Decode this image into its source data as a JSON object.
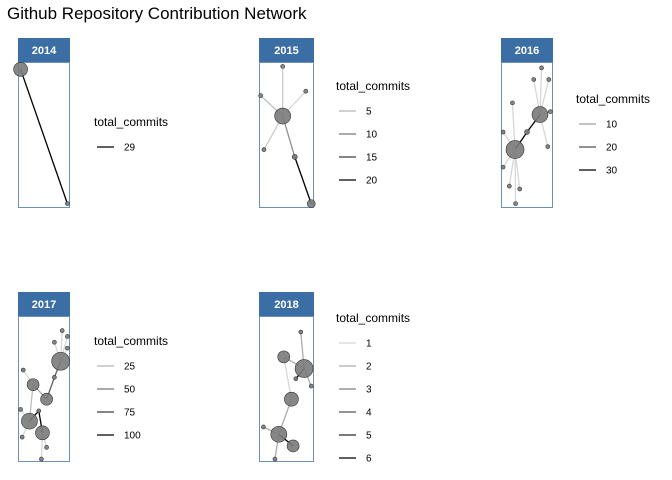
{
  "title": "Github Repository Contribution Network",
  "colors": {
    "strip": "#3a6ea5",
    "node": "#7a7a7a",
    "edge_light": "#d9d9d9",
    "edge_dark": "#000000"
  },
  "chart_data": {
    "type": "network",
    "facet_variable": "year",
    "edge_legend_title": "total_commits",
    "panels": [
      {
        "year": "2014",
        "legend": {
          "title": "total_commits",
          "values": [
            29
          ],
          "labels": [
            "29"
          ]
        },
        "nodes": [
          {
            "id": "a",
            "x": 0.05,
            "y": 0.05,
            "size": 7
          },
          {
            "id": "b",
            "x": 0.95,
            "y": 0.97,
            "size": 2
          }
        ],
        "edges": [
          {
            "from": "a",
            "to": "b",
            "commits": 29
          }
        ]
      },
      {
        "year": "2015",
        "legend": {
          "title": "total_commits",
          "values": [
            5,
            10,
            15,
            20
          ],
          "labels": [
            "5",
            "10",
            "15",
            "20"
          ]
        },
        "nodes": [
          {
            "id": "c",
            "x": 0.43,
            "y": 0.37,
            "size": 8
          },
          {
            "id": "t",
            "x": 0.43,
            "y": 0.03,
            "size": 2
          },
          {
            "id": "l",
            "x": 0.03,
            "y": 0.23,
            "size": 2
          },
          {
            "id": "r",
            "x": 0.85,
            "y": 0.2,
            "size": 2
          },
          {
            "id": "bl",
            "x": 0.09,
            "y": 0.6,
            "size": 2
          },
          {
            "id": "m",
            "x": 0.65,
            "y": 0.65,
            "size": 2.5
          },
          {
            "id": "e",
            "x": 0.95,
            "y": 0.97,
            "size": 4
          }
        ],
        "edges": [
          {
            "from": "c",
            "to": "t",
            "commits": 3
          },
          {
            "from": "c",
            "to": "l",
            "commits": 4
          },
          {
            "from": "c",
            "to": "r",
            "commits": 2
          },
          {
            "from": "c",
            "to": "bl",
            "commits": 3
          },
          {
            "from": "c",
            "to": "m",
            "commits": 8
          },
          {
            "from": "m",
            "to": "e",
            "commits": 20
          }
        ]
      },
      {
        "year": "2016",
        "legend": {
          "title": "total_commits",
          "values": [
            10,
            20,
            30
          ],
          "labels": [
            "10",
            "20",
            "30"
          ]
        },
        "nodes": [
          {
            "id": "h1",
            "x": 0.75,
            "y": 0.36,
            "size": 8
          },
          {
            "id": "h2",
            "x": 0.27,
            "y": 0.6,
            "size": 9
          },
          {
            "id": "j",
            "x": 0.5,
            "y": 0.48,
            "size": 2.5
          },
          {
            "id": "a1",
            "x": 0.78,
            "y": 0.04,
            "size": 2
          },
          {
            "id": "a2",
            "x": 0.63,
            "y": 0.12,
            "size": 2
          },
          {
            "id": "a3",
            "x": 0.92,
            "y": 0.12,
            "size": 2
          },
          {
            "id": "a4",
            "x": 0.95,
            "y": 0.34,
            "size": 2
          },
          {
            "id": "a5",
            "x": 0.9,
            "y": 0.58,
            "size": 2
          },
          {
            "id": "b1",
            "x": 0.22,
            "y": 0.28,
            "size": 2
          },
          {
            "id": "b2",
            "x": 0.04,
            "y": 0.48,
            "size": 2
          },
          {
            "id": "b3",
            "x": 0.04,
            "y": 0.72,
            "size": 2
          },
          {
            "id": "b4",
            "x": 0.16,
            "y": 0.85,
            "size": 2
          },
          {
            "id": "b5",
            "x": 0.36,
            "y": 0.87,
            "size": 2
          },
          {
            "id": "b6",
            "x": 0.28,
            "y": 0.97,
            "size": 2
          }
        ],
        "edges": [
          {
            "from": "h1",
            "to": "a1",
            "commits": 3
          },
          {
            "from": "h1",
            "to": "a2",
            "commits": 3
          },
          {
            "from": "h1",
            "to": "a3",
            "commits": 3
          },
          {
            "from": "h1",
            "to": "a4",
            "commits": 3
          },
          {
            "from": "h1",
            "to": "a5",
            "commits": 3
          },
          {
            "from": "h1",
            "to": "j",
            "commits": 30
          },
          {
            "from": "h2",
            "to": "j",
            "commits": 30
          },
          {
            "from": "h2",
            "to": "b1",
            "commits": 3
          },
          {
            "from": "h2",
            "to": "b2",
            "commits": 3
          },
          {
            "from": "h2",
            "to": "b3",
            "commits": 3
          },
          {
            "from": "h2",
            "to": "b4",
            "commits": 3
          },
          {
            "from": "h2",
            "to": "b5",
            "commits": 3
          },
          {
            "from": "h2",
            "to": "b6",
            "commits": 3
          }
        ]
      },
      {
        "year": "2017",
        "legend": {
          "title": "total_commits",
          "values": [
            25,
            50,
            75,
            100
          ],
          "labels": [
            "25",
            "50",
            "75",
            "100"
          ]
        },
        "nodes": [
          {
            "id": "p1",
            "x": 0.82,
            "y": 0.31,
            "size": 9
          },
          {
            "id": "p2",
            "x": 0.29,
            "y": 0.47,
            "size": 6
          },
          {
            "id": "p3",
            "x": 0.55,
            "y": 0.57,
            "size": 6
          },
          {
            "id": "p4",
            "x": 0.22,
            "y": 0.72,
            "size": 8
          },
          {
            "id": "p5",
            "x": 0.47,
            "y": 0.8,
            "size": 7
          },
          {
            "id": "j1",
            "x": 0.7,
            "y": 0.42,
            "size": 2
          },
          {
            "id": "j2",
            "x": 0.4,
            "y": 0.65,
            "size": 2
          },
          {
            "id": "s1",
            "x": 0.85,
            "y": 0.1,
            "size": 2
          },
          {
            "id": "s2",
            "x": 0.95,
            "y": 0.14,
            "size": 2
          },
          {
            "id": "s3",
            "x": 0.7,
            "y": 0.18,
            "size": 2
          },
          {
            "id": "s4",
            "x": 0.95,
            "y": 0.22,
            "size": 2
          },
          {
            "id": "s5",
            "x": 0.1,
            "y": 0.37,
            "size": 2
          },
          {
            "id": "s6",
            "x": 0.05,
            "y": 0.64,
            "size": 2
          },
          {
            "id": "s7",
            "x": 0.08,
            "y": 0.83,
            "size": 2
          },
          {
            "id": "s8",
            "x": 0.55,
            "y": 0.9,
            "size": 2
          },
          {
            "id": "s9",
            "x": 0.45,
            "y": 0.98,
            "size": 2
          }
        ],
        "edges": [
          {
            "from": "p1",
            "to": "s1",
            "commits": 10
          },
          {
            "from": "p1",
            "to": "s2",
            "commits": 10
          },
          {
            "from": "p1",
            "to": "s3",
            "commits": 10
          },
          {
            "from": "p1",
            "to": "s4",
            "commits": 10
          },
          {
            "from": "p1",
            "to": "j1",
            "commits": 60
          },
          {
            "from": "j1",
            "to": "p3",
            "commits": 60
          },
          {
            "from": "p2",
            "to": "s5",
            "commits": 10
          },
          {
            "from": "p2",
            "to": "p3",
            "commits": 30
          },
          {
            "from": "p4",
            "to": "s6",
            "commits": 10
          },
          {
            "from": "p4",
            "to": "s7",
            "commits": 10
          },
          {
            "from": "p4",
            "to": "j2",
            "commits": 100
          },
          {
            "from": "j2",
            "to": "p5",
            "commits": 100
          },
          {
            "from": "p5",
            "to": "s8",
            "commits": 10
          },
          {
            "from": "p5",
            "to": "s9",
            "commits": 10
          },
          {
            "from": "p2",
            "to": "p4",
            "commits": 20
          }
        ]
      },
      {
        "year": "2018",
        "legend": {
          "title": "total_commits",
          "values": [
            1,
            2,
            3,
            4,
            5,
            6
          ],
          "labels": [
            "1",
            "2",
            "3",
            "4",
            "5",
            "6"
          ]
        },
        "nodes": [
          {
            "id": "q1",
            "x": 0.82,
            "y": 0.36,
            "size": 9
          },
          {
            "id": "q2",
            "x": 0.45,
            "y": 0.28,
            "size": 6
          },
          {
            "id": "q3",
            "x": 0.59,
            "y": 0.57,
            "size": 7
          },
          {
            "id": "q4",
            "x": 0.36,
            "y": 0.81,
            "size": 8
          },
          {
            "id": "q5",
            "x": 0.62,
            "y": 0.89,
            "size": 6
          },
          {
            "id": "q6",
            "x": 0.67,
            "y": 0.43,
            "size": 2
          },
          {
            "id": "t1",
            "x": 0.76,
            "y": 0.11,
            "size": 2
          },
          {
            "id": "t2",
            "x": 0.95,
            "y": 0.48,
            "size": 2
          },
          {
            "id": "t3",
            "x": 0.08,
            "y": 0.76,
            "size": 2
          },
          {
            "id": "t4",
            "x": 0.29,
            "y": 0.98,
            "size": 2
          }
        ],
        "edges": [
          {
            "from": "q1",
            "to": "t1",
            "commits": 2
          },
          {
            "from": "q1",
            "to": "t2",
            "commits": 2
          },
          {
            "from": "q1",
            "to": "q6",
            "commits": 6
          },
          {
            "from": "q2",
            "to": "q1",
            "commits": 2
          },
          {
            "from": "q2",
            "to": "q3",
            "commits": 1
          },
          {
            "from": "q3",
            "to": "q4",
            "commits": 2
          },
          {
            "from": "q4",
            "to": "q5",
            "commits": 6
          },
          {
            "from": "q4",
            "to": "t3",
            "commits": 2
          },
          {
            "from": "q4",
            "to": "t4",
            "commits": 2
          }
        ]
      }
    ]
  }
}
